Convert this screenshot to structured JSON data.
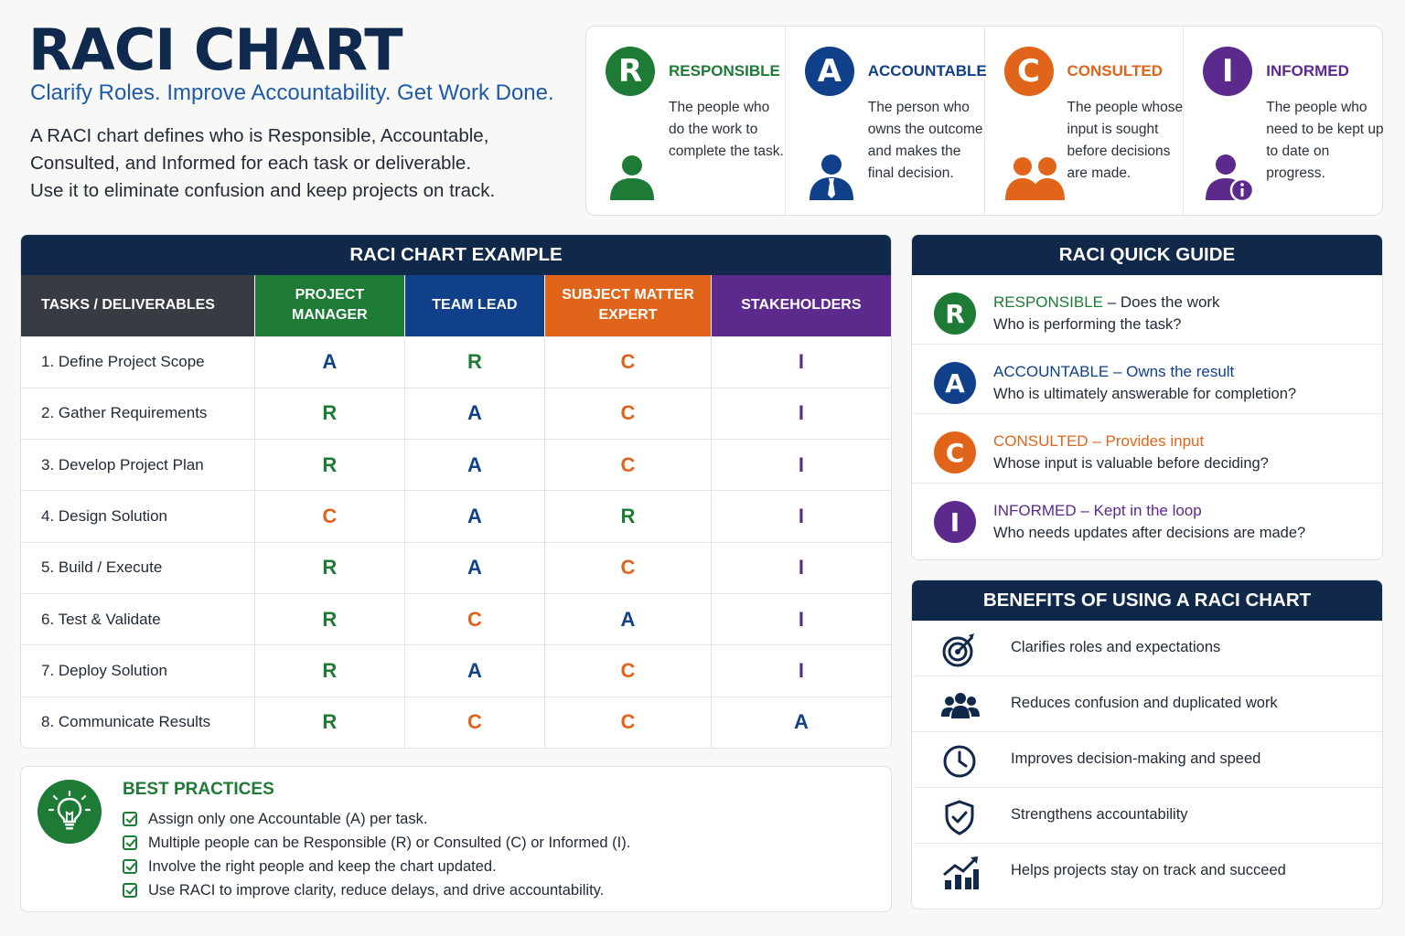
{
  "header": {
    "title": "RACI CHART",
    "tagline": "Clarify Roles. Improve Accountability. Get Work Done.",
    "intro": [
      "A RACI chart defines who is Responsible, Accountable,",
      "Consulted, and Informed for each task or deliverable.",
      "Use it to eliminate confusion and keep projects on track."
    ]
  },
  "colors": {
    "R": "#1e7b35",
    "A": "#10408a",
    "C": "#e0651b",
    "I": "#5b2a8c",
    "navy": "#10284a"
  },
  "roles": [
    {
      "letter": "R",
      "name": "RESPONSIBLE",
      "desc": "The people who do the work to complete the task.",
      "icon": "person-icon"
    },
    {
      "letter": "A",
      "name": "ACCOUNTABLE",
      "desc": "The person who owns the outcome and makes the final decision.",
      "icon": "person-tie-icon"
    },
    {
      "letter": "C",
      "name": "CONSULTED",
      "desc": "The people whose input is sought before decisions are made.",
      "icon": "group-icon"
    },
    {
      "letter": "I",
      "name": "INFORMED",
      "desc": "The people who need to be kept up to date on progress.",
      "icon": "person-info-icon"
    }
  ],
  "matrix": {
    "title": "RACI CHART EXAMPLE",
    "headers": [
      "TASKS / DELIVERABLES",
      "PROJECT MANAGER",
      "TEAM LEAD",
      "SUBJECT MATTER EXPERT",
      "STAKEHOLDERS"
    ],
    "rows": [
      {
        "task": "1.  Define Project Scope",
        "values": [
          "A",
          "R",
          "C",
          "I"
        ]
      },
      {
        "task": "2.  Gather Requirements",
        "values": [
          "R",
          "A",
          "C",
          "I"
        ]
      },
      {
        "task": "3.  Develop Project Plan",
        "values": [
          "R",
          "A",
          "C",
          "I"
        ]
      },
      {
        "task": "4.  Design Solution",
        "values": [
          "C",
          "A",
          "R",
          "I"
        ]
      },
      {
        "task": "5.  Build / Execute",
        "values": [
          "R",
          "A",
          "C",
          "I"
        ]
      },
      {
        "task": "6.  Test & Validate",
        "values": [
          "R",
          "C",
          "A",
          "I"
        ]
      },
      {
        "task": "7.  Deploy Solution",
        "values": [
          "R",
          "A",
          "C",
          "I"
        ]
      },
      {
        "task": "8.  Communicate Results",
        "values": [
          "R",
          "C",
          "C",
          "A"
        ]
      }
    ]
  },
  "best_practices": {
    "title": "BEST PRACTICES",
    "items": [
      "Assign only one Accountable (A) per task.",
      "Multiple people can be Responsible (R) or Consulted (C) or Informed (I).",
      "Involve the right people and keep the chart updated.",
      "Use RACI to improve clarity, reduce delays, and drive accountability."
    ]
  },
  "guide": {
    "title": "RACI QUICK GUIDE",
    "rows": [
      {
        "letter": "R",
        "term": "RESPONSIBLE",
        "tag": " – Does the work",
        "question": "Who is performing the task?"
      },
      {
        "letter": "A",
        "term": "ACCOUNTABLE",
        "tag": " – Owns the result",
        "question": "Who is ultimately answerable for completion?"
      },
      {
        "letter": "C",
        "term": "CONSULTED",
        "tag": " – Provides input",
        "question": "Whose input is valuable before deciding?"
      },
      {
        "letter": "I",
        "term": "INFORMED",
        "tag": " – Kept in the loop",
        "question": "Who needs updates after decisions are made?"
      }
    ]
  },
  "benefits": {
    "title": "BENEFITS OF USING A RACI CHART",
    "items": [
      {
        "icon": "target-icon",
        "text": "Clarifies roles and expectations"
      },
      {
        "icon": "team-icon",
        "text": "Reduces confusion and duplicated work"
      },
      {
        "icon": "clock-icon",
        "text": "Improves decision-making and speed"
      },
      {
        "icon": "shield-check-icon",
        "text": "Strengthens accountability"
      },
      {
        "icon": "growth-chart-icon",
        "text": "Helps projects stay on track and succeed"
      }
    ]
  }
}
